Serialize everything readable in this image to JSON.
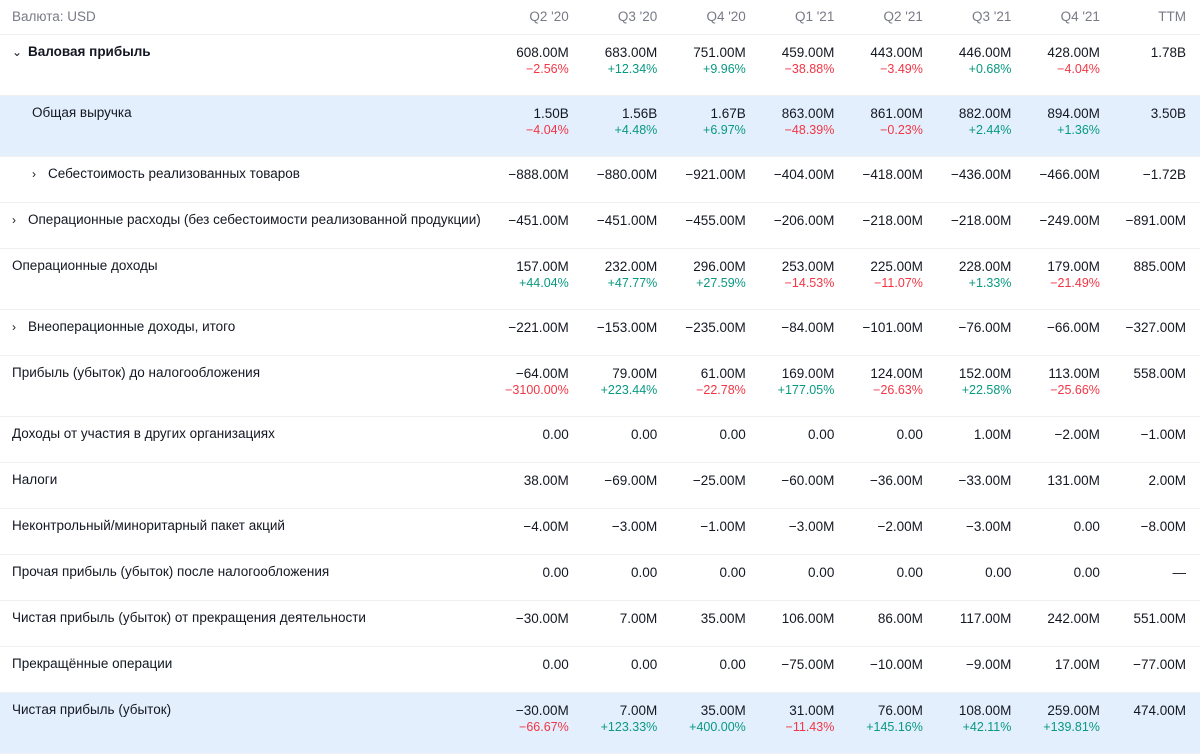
{
  "header": {
    "currency_label": "Валюта: USD",
    "periods": [
      "Q2 '20",
      "Q3 '20",
      "Q4 '20",
      "Q1 '21",
      "Q2 '21",
      "Q3 '21",
      "Q4 '21"
    ],
    "ttm": "TTM"
  },
  "icons": {
    "expanded": "chevron-down-icon",
    "collapsed": "chevron-right-icon"
  },
  "colors": {
    "positive": "#089981",
    "negative": "#f23645",
    "highlight": "#e3effd",
    "muted": "#787b86"
  },
  "rows": [
    {
      "label": "Валовая прибыль",
      "bold": true,
      "chevron": "⌄",
      "indent": 0,
      "hl": false,
      "values": [
        "608.00M",
        "683.00M",
        "751.00M",
        "459.00M",
        "443.00M",
        "446.00M",
        "428.00M"
      ],
      "pcts": [
        "−2.56%",
        "+12.34%",
        "+9.96%",
        "−38.88%",
        "−3.49%",
        "+0.68%",
        "−4.04%"
      ],
      "ttm": "1.78B"
    },
    {
      "label": "Общая выручка",
      "bold": false,
      "chevron": "",
      "indent": 1,
      "hl": true,
      "values": [
        "1.50B",
        "1.56B",
        "1.67B",
        "863.00M",
        "861.00M",
        "882.00M",
        "894.00M"
      ],
      "pcts": [
        "−4.04%",
        "+4.48%",
        "+6.97%",
        "−48.39%",
        "−0.23%",
        "+2.44%",
        "+1.36%"
      ],
      "ttm": "3.50B"
    },
    {
      "label": "Себестоимость реализованных товаров",
      "bold": false,
      "chevron": "›",
      "indent": 1,
      "hl": false,
      "values": [
        "−888.00M",
        "−880.00M",
        "−921.00M",
        "−404.00M",
        "−418.00M",
        "−436.00M",
        "−466.00M"
      ],
      "pcts": [],
      "ttm": "−1.72B"
    },
    {
      "label": "Операционные расходы (без себестоимости реализованной продукции)",
      "bold": false,
      "chevron": "›",
      "indent": 0,
      "hl": false,
      "values": [
        "−451.00M",
        "−451.00M",
        "−455.00M",
        "−206.00M",
        "−218.00M",
        "−218.00M",
        "−249.00M"
      ],
      "pcts": [],
      "ttm": "−891.00M"
    },
    {
      "label": "Операционные доходы",
      "bold": false,
      "chevron": "",
      "indent": 0,
      "hl": false,
      "values": [
        "157.00M",
        "232.00M",
        "296.00M",
        "253.00M",
        "225.00M",
        "228.00M",
        "179.00M"
      ],
      "pcts": [
        "+44.04%",
        "+47.77%",
        "+27.59%",
        "−14.53%",
        "−11.07%",
        "+1.33%",
        "−21.49%"
      ],
      "ttm": "885.00M"
    },
    {
      "label": "Внеоперационные доходы, итого",
      "bold": false,
      "chevron": "›",
      "indent": 0,
      "hl": false,
      "values": [
        "−221.00M",
        "−153.00M",
        "−235.00M",
        "−84.00M",
        "−101.00M",
        "−76.00M",
        "−66.00M"
      ],
      "pcts": [],
      "ttm": "−327.00M"
    },
    {
      "label": "Прибыль (убыток) до налогообложения",
      "bold": false,
      "chevron": "",
      "indent": 0,
      "hl": false,
      "values": [
        "−64.00M",
        "79.00M",
        "61.00M",
        "169.00M",
        "124.00M",
        "152.00M",
        "113.00M"
      ],
      "pcts": [
        "−3100.00%",
        "+223.44%",
        "−22.78%",
        "+177.05%",
        "−26.63%",
        "+22.58%",
        "−25.66%"
      ],
      "ttm": "558.00M"
    },
    {
      "label": "Доходы от участия в других организациях",
      "bold": false,
      "chevron": "",
      "indent": 0,
      "hl": false,
      "values": [
        "0.00",
        "0.00",
        "0.00",
        "0.00",
        "0.00",
        "1.00M",
        "−2.00M"
      ],
      "pcts": [],
      "ttm": "−1.00M"
    },
    {
      "label": "Налоги",
      "bold": false,
      "chevron": "",
      "indent": 0,
      "hl": false,
      "values": [
        "38.00M",
        "−69.00M",
        "−25.00M",
        "−60.00M",
        "−36.00M",
        "−33.00M",
        "131.00M"
      ],
      "pcts": [],
      "ttm": "2.00M"
    },
    {
      "label": "Неконтрольный/миноритарный пакет акций",
      "bold": false,
      "chevron": "",
      "indent": 0,
      "hl": false,
      "values": [
        "−4.00M",
        "−3.00M",
        "−1.00M",
        "−3.00M",
        "−2.00M",
        "−3.00M",
        "0.00"
      ],
      "pcts": [],
      "ttm": "−8.00M"
    },
    {
      "label": "Прочая прибыль (убыток) после налогообложения",
      "bold": false,
      "chevron": "",
      "indent": 0,
      "hl": false,
      "values": [
        "0.00",
        "0.00",
        "0.00",
        "0.00",
        "0.00",
        "0.00",
        "0.00"
      ],
      "pcts": [],
      "ttm": "—"
    },
    {
      "label": "Чистая прибыль (убыток) от прекращения деятельности",
      "bold": false,
      "chevron": "",
      "indent": 0,
      "hl": false,
      "values": [
        "−30.00M",
        "7.00M",
        "35.00M",
        "106.00M",
        "86.00M",
        "117.00M",
        "242.00M"
      ],
      "pcts": [],
      "ttm": "551.00M"
    },
    {
      "label": "Прекращённые операции",
      "bold": false,
      "chevron": "",
      "indent": 0,
      "hl": false,
      "values": [
        "0.00",
        "0.00",
        "0.00",
        "−75.00M",
        "−10.00M",
        "−9.00M",
        "17.00M"
      ],
      "pcts": [],
      "ttm": "−77.00M"
    },
    {
      "label": "Чистая прибыль (убыток)",
      "bold": false,
      "chevron": "",
      "indent": 0,
      "hl": true,
      "values": [
        "−30.00M",
        "7.00M",
        "35.00M",
        "31.00M",
        "76.00M",
        "108.00M",
        "259.00M"
      ],
      "pcts": [
        "−66.67%",
        "+123.33%",
        "+400.00%",
        "−11.43%",
        "+145.16%",
        "+42.11%",
        "+139.81%"
      ],
      "ttm": "474.00M"
    }
  ]
}
